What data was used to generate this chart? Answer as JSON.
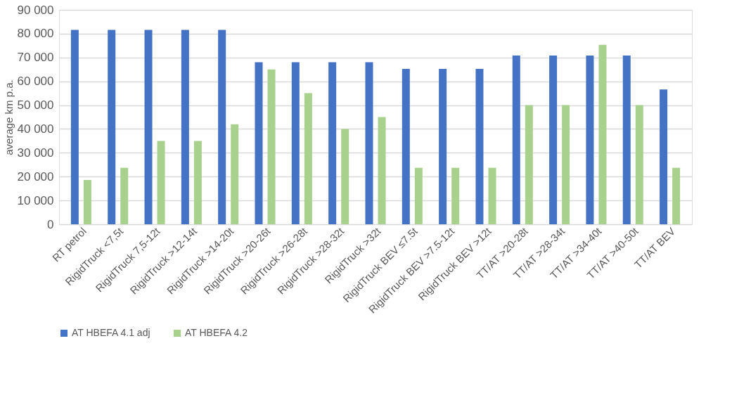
{
  "chart_data": {
    "type": "bar",
    "ylabel": "average km p.a.",
    "categories": [
      "RT petrol",
      "RigidTruck <7,5t",
      "RigidTruck 7,5-12t",
      "RigidTruck >12-14t",
      "RigidTruck >14-20t",
      "RigidTruck >20-26t",
      "RigidTruck >26-28t",
      "RigidTruck >28-32t",
      "RigidTruck >32t",
      "RigidTruck BEV ≤7.5t",
      "RigidTruck BEV >7.5-12t",
      "RigidTruck BEV >12t",
      "TT/AT >20-28t",
      "TT/AT >28-34t",
      "TT/AT >34-40t",
      "TT/AT >40-50t",
      "TT/AT BEV"
    ],
    "series": [
      {
        "name": "AT HBEFA 4.1 adj",
        "color": "#4472c4",
        "values": [
          81600,
          81600,
          81600,
          81600,
          81600,
          68000,
          68000,
          68000,
          68000,
          65200,
          65200,
          65200,
          70800,
          70800,
          70800,
          70800,
          56600
        ]
      },
      {
        "name": "AT HBEFA 4.2",
        "color": "#a9d18e",
        "values": [
          18600,
          23700,
          35000,
          35000,
          42000,
          65000,
          55000,
          40000,
          45000,
          23700,
          23700,
          23700,
          50000,
          50000,
          75300,
          50000,
          23700
        ]
      }
    ],
    "ylim": [
      0,
      90000
    ],
    "yticks": [
      {
        "value": 0,
        "label": "0"
      },
      {
        "value": 10000,
        "label": "10 000"
      },
      {
        "value": 20000,
        "label": "20 000"
      },
      {
        "value": 30000,
        "label": "30 000"
      },
      {
        "value": 40000,
        "label": "40 000"
      },
      {
        "value": 50000,
        "label": "50 000"
      },
      {
        "value": 60000,
        "label": "60 000"
      },
      {
        "value": 70000,
        "label": "70 000"
      },
      {
        "value": 80000,
        "label": "80 000"
      },
      {
        "value": 90000,
        "label": "90 000"
      }
    ],
    "grid": "y",
    "legend": "bottom"
  }
}
